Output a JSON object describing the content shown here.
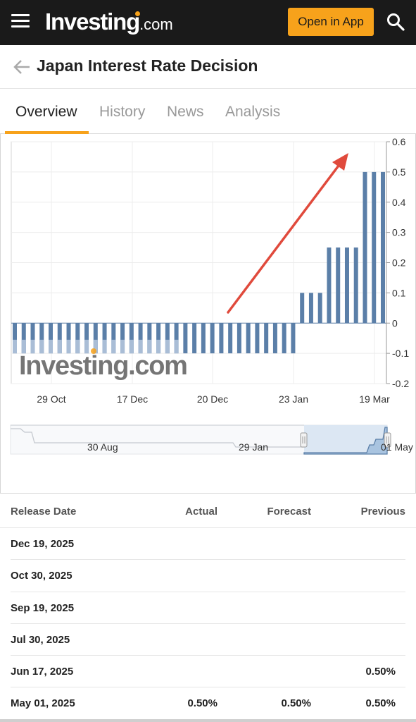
{
  "header": {
    "logo_main": "Investing",
    "logo_suffix": ".com",
    "open_app_label": "Open in App"
  },
  "page": {
    "title": "Japan Interest Rate Decision"
  },
  "tabs": [
    {
      "label": "Overview",
      "active": true
    },
    {
      "label": "History",
      "active": false
    },
    {
      "label": "News",
      "active": false
    },
    {
      "label": "Analysis",
      "active": false
    }
  ],
  "chart_data": {
    "type": "bar",
    "watermark": "Investing.com",
    "ylim": [
      -0.2,
      0.6
    ],
    "y_ticks": [
      "0.6",
      "0.5",
      "0.4",
      "0.3",
      "0.2",
      "0.1",
      "0",
      "-0.1",
      "-0.2"
    ],
    "x_tick_labels": [
      "29 Oct",
      "17 Dec",
      "20 Dec",
      "23 Jan",
      "19 Mar"
    ],
    "values": [
      -0.1,
      -0.1,
      -0.1,
      -0.1,
      -0.1,
      -0.1,
      -0.1,
      -0.1,
      -0.1,
      -0.1,
      -0.1,
      -0.1,
      -0.1,
      -0.1,
      -0.1,
      -0.1,
      -0.1,
      -0.1,
      -0.1,
      -0.1,
      -0.1,
      -0.1,
      -0.1,
      -0.1,
      -0.1,
      -0.1,
      -0.1,
      -0.1,
      -0.1,
      -0.1,
      -0.1,
      -0.1,
      0.1,
      0.1,
      0.1,
      0.25,
      0.25,
      0.25,
      0.25,
      0.5,
      0.5,
      0.5
    ],
    "bar_color": "#5b7fa8",
    "faded_bar_color": "#a9bdd6",
    "faded_count": 19,
    "annotation": {
      "type": "arrow",
      "color": "#e04a3c",
      "direction": "up-right"
    },
    "navigator": {
      "labels": [
        "30 Aug",
        "29 Jan",
        "01 May"
      ]
    }
  },
  "table": {
    "headers": {
      "release_date": "Release Date",
      "actual": "Actual",
      "forecast": "Forecast",
      "previous": "Previous"
    },
    "rows": [
      {
        "date": "Dec 19, 2025",
        "actual": "",
        "forecast": "",
        "previous": ""
      },
      {
        "date": "Oct 30, 2025",
        "actual": "",
        "forecast": "",
        "previous": ""
      },
      {
        "date": "Sep 19, 2025",
        "actual": "",
        "forecast": "",
        "previous": ""
      },
      {
        "date": "Jul 30, 2025",
        "actual": "",
        "forecast": "",
        "previous": ""
      },
      {
        "date": "Jun 17, 2025",
        "actual": "",
        "forecast": "",
        "previous": "0.50%"
      },
      {
        "date": "May 01, 2025",
        "actual": "0.50%",
        "forecast": "0.50%",
        "previous": "0.50%"
      }
    ]
  }
}
